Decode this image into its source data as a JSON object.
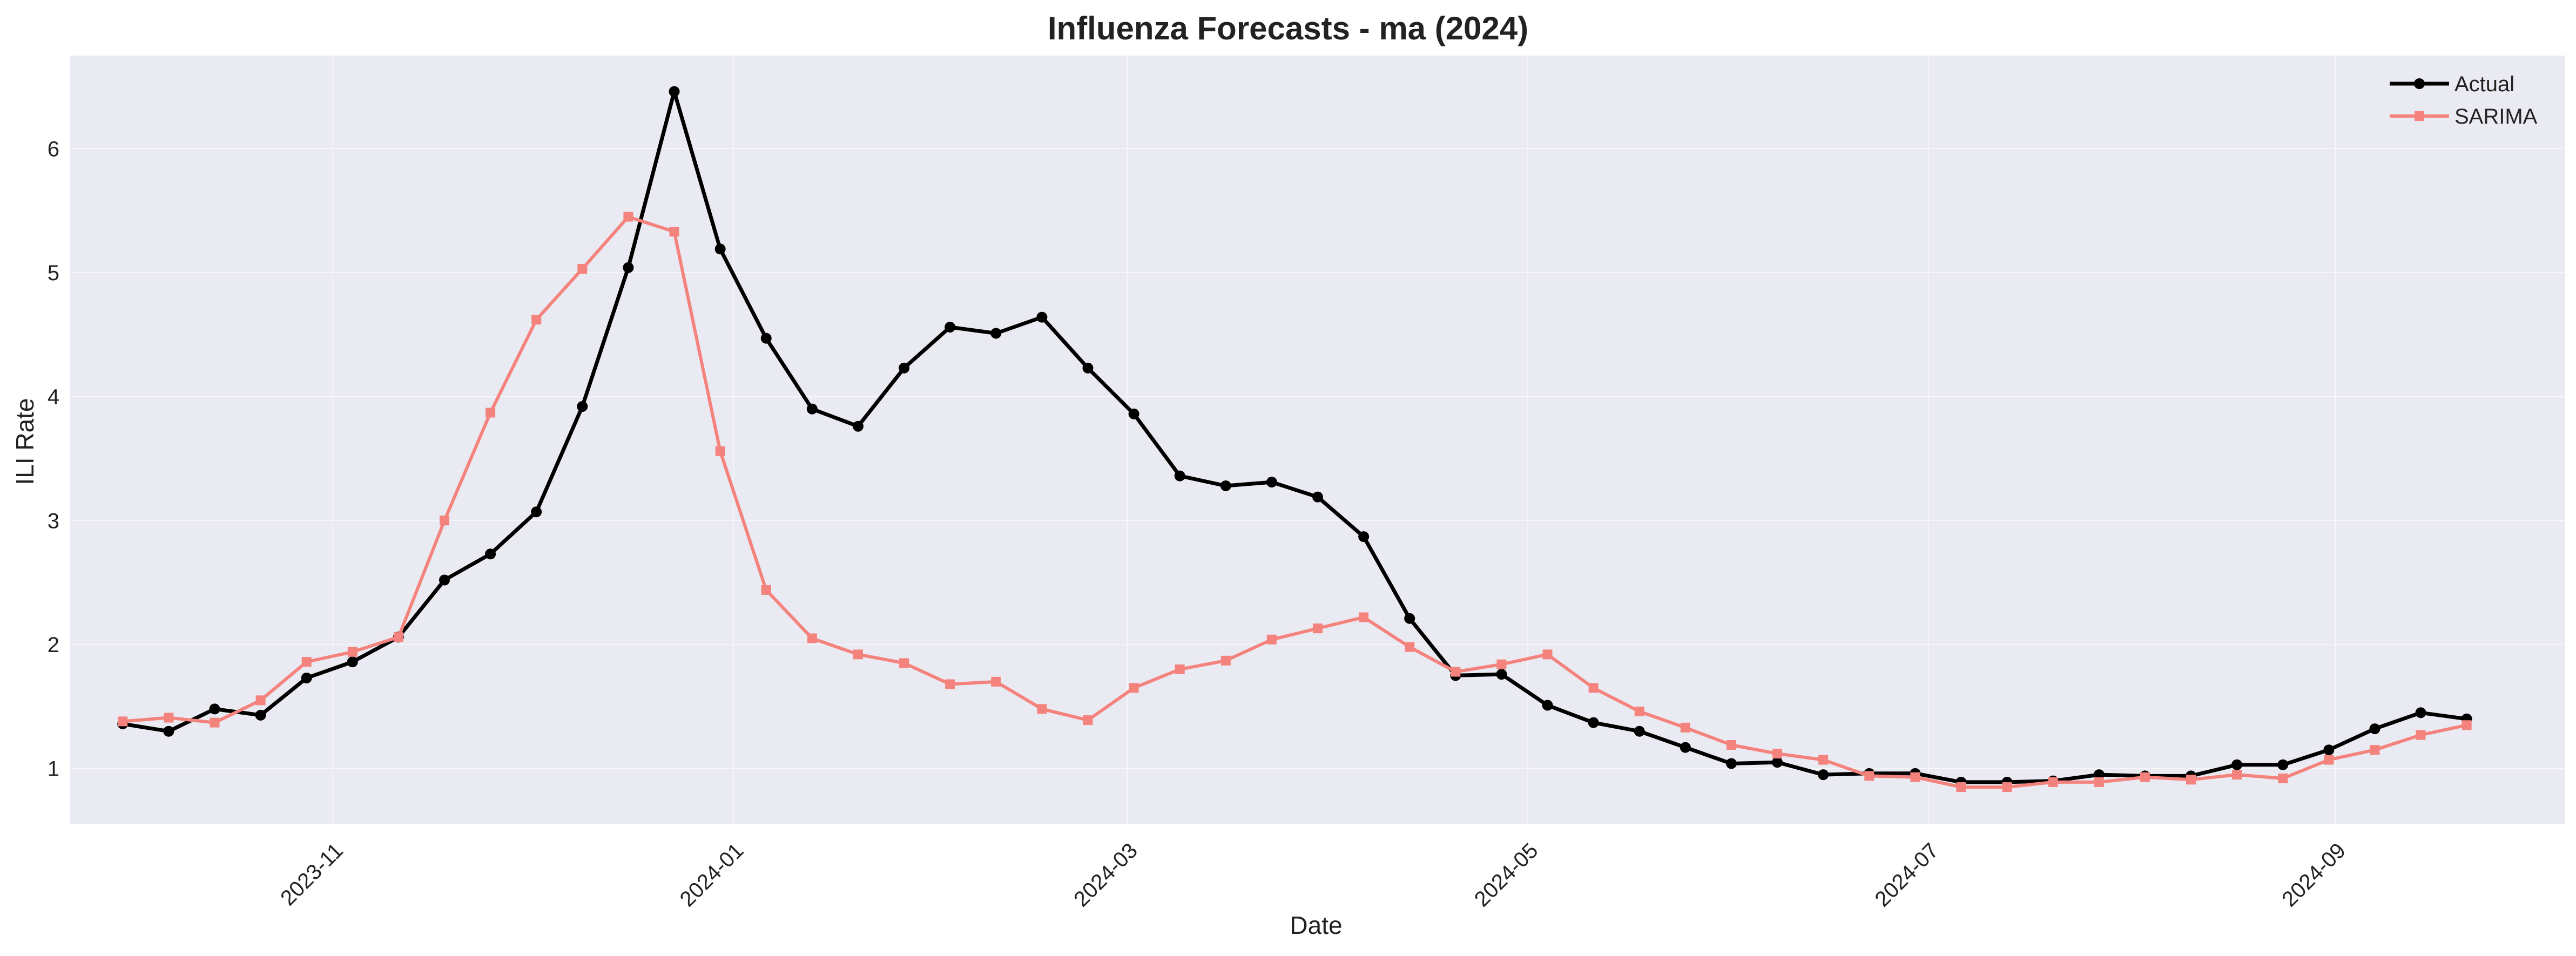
{
  "chart_data": {
    "type": "line",
    "title": "Influenza Forecasts - ma (2024)",
    "xlabel": "Date",
    "ylabel": "ILI Rate",
    "x_axis_kind": "date",
    "xlim": [
      "2023-09-22",
      "2024-10-06"
    ],
    "ylim": [
      0.55,
      6.75
    ],
    "grid": true,
    "legend_position": "top-right",
    "background_color": "#eaeaf2",
    "y_ticks": [
      1,
      2,
      3,
      4,
      5,
      6
    ],
    "x_ticks": [
      "2023-11",
      "2024-01",
      "2024-03",
      "2024-05",
      "2024-07",
      "2024-09"
    ],
    "x_tick_dates": [
      "2023-11-01",
      "2024-01-01",
      "2024-03-01",
      "2024-05-01",
      "2024-07-01",
      "2024-09-01"
    ],
    "x": [
      "2023-09-30",
      "2023-10-07",
      "2023-10-14",
      "2023-10-21",
      "2023-10-28",
      "2023-11-04",
      "2023-11-11",
      "2023-11-18",
      "2023-11-25",
      "2023-12-02",
      "2023-12-09",
      "2023-12-16",
      "2023-12-23",
      "2023-12-30",
      "2024-01-06",
      "2024-01-13",
      "2024-01-20",
      "2024-01-27",
      "2024-02-03",
      "2024-02-10",
      "2024-02-17",
      "2024-02-24",
      "2024-03-02",
      "2024-03-09",
      "2024-03-16",
      "2024-03-23",
      "2024-03-30",
      "2024-04-06",
      "2024-04-13",
      "2024-04-20",
      "2024-04-27",
      "2024-05-04",
      "2024-05-11",
      "2024-05-18",
      "2024-05-25",
      "2024-06-01",
      "2024-06-08",
      "2024-06-15",
      "2024-06-22",
      "2024-06-29",
      "2024-07-06",
      "2024-07-13",
      "2024-07-20",
      "2024-07-27",
      "2024-08-03",
      "2024-08-10",
      "2024-08-17",
      "2024-08-24",
      "2024-08-31",
      "2024-09-07",
      "2024-09-14",
      "2024-09-21"
    ],
    "series": [
      {
        "name": "Actual",
        "color": "#000000",
        "marker": "circle",
        "values": [
          1.36,
          1.3,
          1.48,
          1.43,
          1.73,
          1.86,
          2.06,
          2.52,
          2.73,
          3.07,
          3.92,
          5.04,
          6.46,
          5.19,
          4.47,
          3.9,
          3.76,
          4.23,
          4.56,
          4.51,
          4.64,
          4.23,
          3.86,
          3.36,
          3.28,
          3.31,
          3.19,
          2.87,
          2.21,
          1.75,
          1.76,
          1.51,
          1.37,
          1.3,
          1.17,
          1.04,
          1.05,
          0.95,
          0.96,
          0.96,
          0.89,
          0.89,
          0.9,
          0.95,
          0.94,
          0.94,
          1.03,
          1.03,
          1.15,
          1.32,
          1.45,
          1.4
        ]
      },
      {
        "name": "SARIMA",
        "color": "#f4837d",
        "marker": "square",
        "values": [
          1.38,
          1.41,
          1.37,
          1.55,
          1.86,
          1.94,
          2.06,
          3.0,
          3.87,
          4.62,
          5.03,
          5.45,
          5.33,
          3.56,
          2.44,
          2.05,
          1.92,
          1.85,
          1.68,
          1.7,
          1.48,
          1.39,
          1.65,
          1.8,
          1.87,
          2.04,
          2.13,
          2.22,
          1.98,
          1.78,
          1.84,
          1.92,
          1.65,
          1.46,
          1.33,
          1.19,
          1.12,
          1.07,
          0.94,
          0.93,
          0.85,
          0.85,
          0.89,
          0.89,
          0.93,
          0.91,
          0.95,
          0.92,
          1.07,
          1.15,
          1.27,
          1.35
        ]
      }
    ]
  }
}
